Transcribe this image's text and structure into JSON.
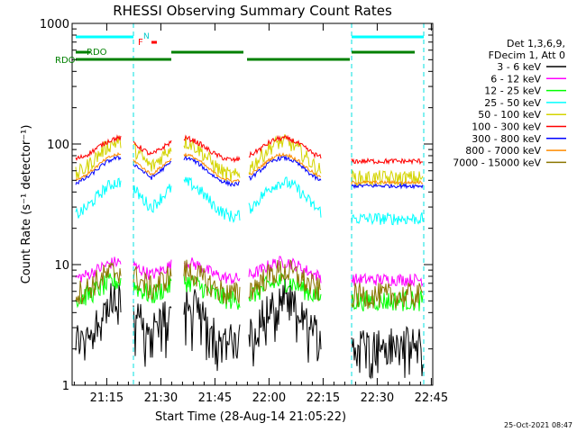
{
  "chart_data": {
    "type": "line",
    "title": "RHESSI Observing Summary Count Rates",
    "xlabel": "Start Time (28-Aug-14 21:05:22)",
    "ylabel": "Count Rate (s⁻¹ detector⁻¹)",
    "yscale": "log",
    "ylim": [
      1,
      1000
    ],
    "xlim_minutes": [
      0,
      100
    ],
    "x_ticks": [
      {
        "label": "21:15",
        "value": 9.6
      },
      {
        "label": "21:30",
        "value": 24.6
      },
      {
        "label": "21:45",
        "value": 39.6
      },
      {
        "label": "22:00",
        "value": 54.6
      },
      {
        "label": "22:15",
        "value": 69.6
      },
      {
        "label": "22:30",
        "value": 84.6
      },
      {
        "label": "22:45",
        "value": 99.6
      }
    ],
    "y_ticks": [
      {
        "label": "1",
        "value": 1
      },
      {
        "label": "10",
        "value": 10
      },
      {
        "label": "100",
        "value": 100
      },
      {
        "label": "1000",
        "value": 1000
      }
    ],
    "legend_header": [
      "Det 1,3,6,9,",
      "FDecim 1, Att 0"
    ],
    "series": [
      {
        "name": "3 - 6 keV",
        "color": "#000000",
        "level": 1.6
      },
      {
        "name": "6 - 12 keV",
        "color": "#ff00ff",
        "level": 7.5
      },
      {
        "name": "12 - 25 keV",
        "color": "#00ff00",
        "level": 5
      },
      {
        "name": "25 - 50 keV",
        "color": "#00ffff",
        "level": 24
      },
      {
        "name": "50 - 100 keV",
        "color": "#d4d400",
        "level": 52
      },
      {
        "name": "100 - 300 keV",
        "color": "#ff0000",
        "level": 72
      },
      {
        "name": "300 - 800 keV",
        "color": "#0000ff",
        "level": 45
      },
      {
        "name": "800 - 7000 keV",
        "color": "#ff8c00",
        "level": 48
      },
      {
        "name": "7000 - 15000 keV",
        "color": "#8b7500",
        "level": 5.5
      }
    ],
    "annotations": {
      "rdo_label": "RDO",
      "n_label": "N",
      "f_label": "F"
    },
    "timestamp": "25-Oct-2021 08:47"
  }
}
